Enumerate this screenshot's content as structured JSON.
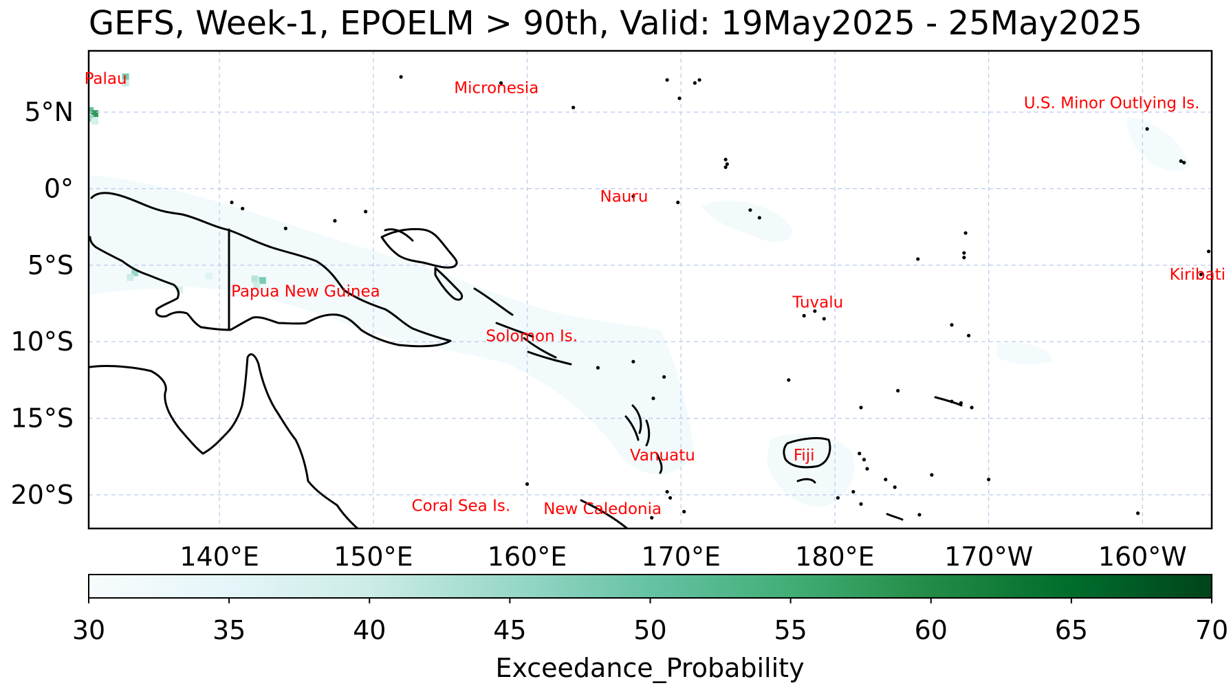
{
  "title": "GEFS, Week-1, EPOELM > 90th, Valid: 19May2025 - 25May2025",
  "map": {
    "extent": {
      "lon_min": 131.5,
      "lon_max": 204.5,
      "lat_min": -22.2,
      "lat_max": 9.0
    },
    "gridlines": {
      "lons": [
        140,
        150,
        160,
        170,
        180,
        190,
        200
      ],
      "lats": [
        5,
        0,
        -5,
        -10,
        -15,
        -20
      ],
      "style": "dashed",
      "color": "#b9c9ee"
    },
    "lon_ticks": [
      {
        "lon": 140,
        "label": "140°E"
      },
      {
        "lon": 150,
        "label": "150°E"
      },
      {
        "lon": 160,
        "label": "160°E"
      },
      {
        "lon": 170,
        "label": "170°E"
      },
      {
        "lon": 180,
        "label": "180°E"
      },
      {
        "lon": 190,
        "label": "170°W"
      },
      {
        "lon": 200,
        "label": "160°W"
      }
    ],
    "lat_ticks": [
      {
        "lat": 5,
        "label": "5°N"
      },
      {
        "lat": 0,
        "label": "0°"
      },
      {
        "lat": -5,
        "label": "5°S"
      },
      {
        "lat": -10,
        "label": "10°S"
      },
      {
        "lat": -15,
        "label": "15°S"
      },
      {
        "lat": -20,
        "label": "20°S"
      }
    ],
    "country_labels": [
      {
        "name": "Palau",
        "lon": 132.6,
        "lat": 7.2
      },
      {
        "name": "Micronesia",
        "lon": 158.0,
        "lat": 6.6
      },
      {
        "name": "U.S. Minor Outlying Is.",
        "lon": 198.0,
        "lat": 5.6
      },
      {
        "name": "Nauru",
        "lon": 166.3,
        "lat": -0.5
      },
      {
        "name": "Kiribati",
        "lon": 203.8,
        "lat": -5.6
      },
      {
        "name": "Papua New Guinea",
        "lon": 145.6,
        "lat": -6.7
      },
      {
        "name": "Tuvalu",
        "lon": 178.9,
        "lat": -7.4
      },
      {
        "name": "Solomon Is.",
        "lon": 160.3,
        "lat": -9.6
      },
      {
        "name": "Vanuatu",
        "lon": 168.8,
        "lat": -17.4
      },
      {
        "name": "Fiji",
        "lon": 178.0,
        "lat": -17.4
      },
      {
        "name": "Coral Sea Is.",
        "lon": 155.7,
        "lat": -20.7
      },
      {
        "name": "New Caledonia",
        "lon": 164.9,
        "lat": -20.9
      }
    ],
    "label_color": "#ff0000",
    "probability_field_note_color_scale": "BuGn",
    "high_cells": [
      {
        "lon": 133.9,
        "lat": 7.3,
        "p": 48
      },
      {
        "lon": 133.9,
        "lat": 6.9,
        "p": 40
      },
      {
        "lon": 131.6,
        "lat": 5.1,
        "p": 50
      },
      {
        "lon": 131.9,
        "lat": 4.9,
        "p": 58
      },
      {
        "lon": 131.6,
        "lat": 4.6,
        "p": 45
      },
      {
        "lon": 131.9,
        "lat": 4.4,
        "p": 38
      },
      {
        "lon": 134.5,
        "lat": -5.5,
        "p": 45
      },
      {
        "lon": 134.2,
        "lat": -5.8,
        "p": 40
      },
      {
        "lon": 137.4,
        "lat": -6.6,
        "p": 38
      },
      {
        "lon": 139.3,
        "lat": -5.7,
        "p": 36
      },
      {
        "lon": 142.3,
        "lat": -5.9,
        "p": 42
      },
      {
        "lon": 142.8,
        "lat": -6.0,
        "p": 48
      },
      {
        "lon": 142.4,
        "lat": -6.3,
        "p": 40
      }
    ]
  },
  "colorbar": {
    "min": 30,
    "max": 70,
    "ticks": [
      "30",
      "35",
      "40",
      "45",
      "50",
      "55",
      "60",
      "65",
      "70"
    ],
    "label": "Exceedance_Probability",
    "colors": [
      "#f7fcfd",
      "#e5f5f9",
      "#ccece6",
      "#99d8c9",
      "#66c2a4",
      "#41ae76",
      "#238b45",
      "#006d2c",
      "#00441b"
    ]
  }
}
